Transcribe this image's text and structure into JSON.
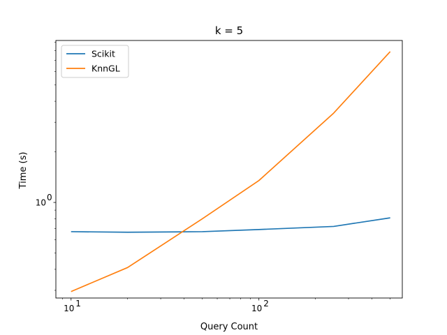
{
  "chart_data": {
    "type": "line",
    "title": "k = 5",
    "xlabel": "Query Count",
    "ylabel": "Time (s)",
    "xscale": "log",
    "yscale": "log",
    "xlim": [
      8.3,
      580
    ],
    "ylim": [
      0.27,
      9.2
    ],
    "grid": false,
    "legend_position": "top-left",
    "x_major_ticks": [
      10,
      100
    ],
    "x_major_tick_labels": [
      "10",
      "10"
    ],
    "x_major_tick_exponents": [
      "1",
      "2"
    ],
    "y_major_ticks": [
      1.0
    ],
    "y_major_tick_labels": [
      "10"
    ],
    "y_major_tick_exponents": [
      "0"
    ],
    "series": [
      {
        "name": "Scikit",
        "color": "#1f77b4",
        "x": [
          10,
          20,
          50,
          100,
          250,
          500
        ],
        "y": [
          0.67,
          0.665,
          0.67,
          0.69,
          0.72,
          0.81
        ]
      },
      {
        "name": "KnnGL",
        "color": "#ff7f0e",
        "x": [
          10,
          20,
          50,
          100,
          250,
          500
        ],
        "y": [
          0.295,
          0.41,
          0.8,
          1.35,
          3.4,
          7.9
        ]
      }
    ]
  }
}
